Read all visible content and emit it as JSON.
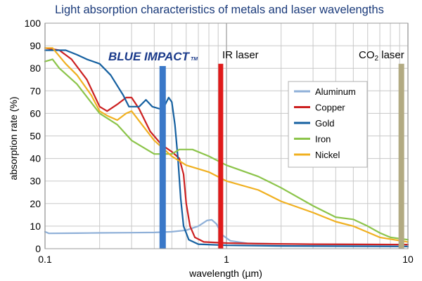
{
  "chart_data": {
    "type": "line",
    "title": "Light absorption characteristics of metals  and laser wavelengths",
    "xlabel": "wavelength (µm)",
    "ylabel": "absorption rate (%)",
    "x_scale": "log",
    "xlim": [
      0.1,
      10
    ],
    "ylim": [
      0,
      100
    ],
    "x_ticks": [
      0.1,
      1,
      10
    ],
    "x_tick_labels": [
      "0.1",
      "1",
      "10"
    ],
    "y_ticks": [
      0,
      10,
      20,
      30,
      40,
      50,
      60,
      70,
      80,
      90,
      100
    ],
    "y_tick_labels": [
      "0",
      "10",
      "20",
      "30",
      "40",
      "50",
      "60",
      "70",
      "80",
      "90",
      "100"
    ],
    "grid": true,
    "legend_position": "right",
    "series": [
      {
        "name": "Aluminum",
        "color": "#8fb0d8",
        "points": [
          [
            0.1,
            7.5
          ],
          [
            0.105,
            6.8
          ],
          [
            0.15,
            6.9
          ],
          [
            0.2,
            7
          ],
          [
            0.3,
            7.1
          ],
          [
            0.4,
            7.2
          ],
          [
            0.5,
            7.5
          ],
          [
            0.6,
            8.2
          ],
          [
            0.7,
            10
          ],
          [
            0.78,
            12.5
          ],
          [
            0.83,
            12.8
          ],
          [
            0.88,
            11
          ],
          [
            0.95,
            6
          ],
          [
            1.05,
            3.5
          ],
          [
            1.3,
            2.4
          ],
          [
            2,
            2.1
          ],
          [
            4,
            1.9
          ],
          [
            10,
            1.8
          ]
        ]
      },
      {
        "name": "Copper",
        "color": "#cc2020",
        "points": [
          [
            0.1,
            89
          ],
          [
            0.12,
            88
          ],
          [
            0.14,
            84
          ],
          [
            0.17,
            75
          ],
          [
            0.2,
            63
          ],
          [
            0.22,
            61
          ],
          [
            0.25,
            64
          ],
          [
            0.28,
            67
          ],
          [
            0.3,
            67
          ],
          [
            0.33,
            62
          ],
          [
            0.38,
            52
          ],
          [
            0.44,
            46
          ],
          [
            0.5,
            43
          ],
          [
            0.55,
            40
          ],
          [
            0.58,
            33
          ],
          [
            0.6,
            20
          ],
          [
            0.63,
            10
          ],
          [
            0.67,
            5
          ],
          [
            0.75,
            3
          ],
          [
            1,
            2.5
          ],
          [
            1.5,
            2.2
          ],
          [
            3,
            2
          ],
          [
            10,
            1.8
          ]
        ]
      },
      {
        "name": "Gold",
        "color": "#1560a0",
        "points": [
          [
            0.1,
            88
          ],
          [
            0.13,
            88
          ],
          [
            0.15,
            86
          ],
          [
            0.17,
            84
          ],
          [
            0.2,
            82
          ],
          [
            0.23,
            77
          ],
          [
            0.27,
            68
          ],
          [
            0.29,
            63
          ],
          [
            0.33,
            63
          ],
          [
            0.36,
            66
          ],
          [
            0.39,
            63
          ],
          [
            0.43,
            62
          ],
          [
            0.46,
            64
          ],
          [
            0.48,
            67
          ],
          [
            0.5,
            65
          ],
          [
            0.52,
            55
          ],
          [
            0.54,
            40
          ],
          [
            0.56,
            22
          ],
          [
            0.58,
            10
          ],
          [
            0.62,
            4
          ],
          [
            0.7,
            2
          ],
          [
            1,
            1.5
          ],
          [
            2,
            1.2
          ],
          [
            10,
            1
          ]
        ]
      },
      {
        "name": "Iron",
        "color": "#8cc44a",
        "points": [
          [
            0.1,
            83
          ],
          [
            0.11,
            84
          ],
          [
            0.12,
            80
          ],
          [
            0.15,
            73
          ],
          [
            0.2,
            60
          ],
          [
            0.25,
            55
          ],
          [
            0.3,
            48
          ],
          [
            0.4,
            42
          ],
          [
            0.5,
            42
          ],
          [
            0.55,
            44
          ],
          [
            0.65,
            44
          ],
          [
            0.8,
            41
          ],
          [
            1,
            37
          ],
          [
            1.5,
            32
          ],
          [
            2,
            27
          ],
          [
            3,
            19
          ],
          [
            4,
            14
          ],
          [
            5,
            13
          ],
          [
            6,
            10
          ],
          [
            7,
            7
          ],
          [
            8,
            5
          ],
          [
            10,
            4
          ]
        ]
      },
      {
        "name": "Nickel",
        "color": "#f0b020",
        "points": [
          [
            0.1,
            89
          ],
          [
            0.11,
            89
          ],
          [
            0.13,
            82
          ],
          [
            0.15,
            77
          ],
          [
            0.18,
            68
          ],
          [
            0.2,
            61
          ],
          [
            0.22,
            59
          ],
          [
            0.25,
            57
          ],
          [
            0.28,
            60
          ],
          [
            0.3,
            61
          ],
          [
            0.35,
            54
          ],
          [
            0.4,
            48
          ],
          [
            0.5,
            41
          ],
          [
            0.6,
            37
          ],
          [
            0.8,
            34
          ],
          [
            1,
            30
          ],
          [
            1.5,
            26
          ],
          [
            2,
            21
          ],
          [
            3,
            16
          ],
          [
            4,
            12
          ],
          [
            5,
            10
          ],
          [
            7,
            5
          ],
          [
            10,
            3
          ]
        ]
      }
    ],
    "laser_bars": [
      {
        "label": "BLUE IMPACT™",
        "label_main": "BLUE IMPACT",
        "label_mark": "TM",
        "wavelength": 0.445,
        "height": 81,
        "color": "#3a78c8"
      },
      {
        "label": "IR laser",
        "wavelength": 0.93,
        "height": 82,
        "color": "#e01a1a"
      },
      {
        "label_prefix": "CO",
        "label_sub": "2",
        "label_suffix": " laser",
        "wavelength": 9.2,
        "height": 82,
        "color": "#b2aa82"
      }
    ]
  }
}
